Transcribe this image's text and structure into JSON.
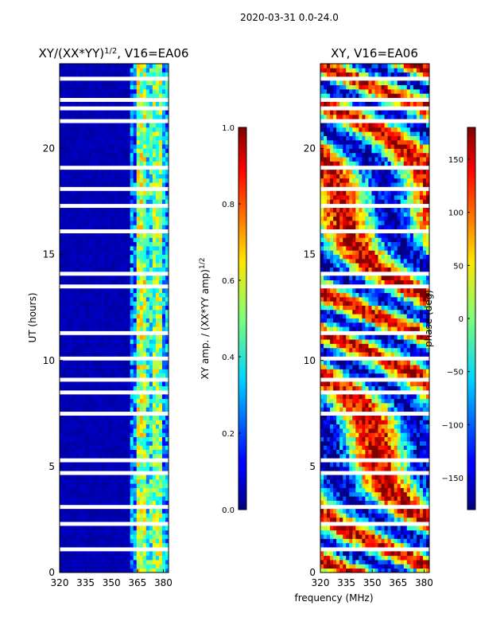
{
  "chart_data": {
    "suptitle": "2020-03-31 0.0-24.0",
    "xlabel_shared": "frequency (MHz)",
    "panels": [
      {
        "type": "heatmap",
        "title_main": "XY/(XX*YY)",
        "title_sup": "1/2",
        "title_tail": ", V16=EA06",
        "ylabel": "UT (hours)",
        "xlim": [
          320,
          383
        ],
        "ylim": [
          0,
          24
        ],
        "xticks": [
          320,
          335,
          350,
          365,
          380
        ],
        "yticks": [
          0,
          5,
          10,
          15,
          20
        ],
        "colorbar": {
          "label_main": "XY amp. / (XX*YY amp)",
          "label_sup": "1/2",
          "range": [
            0.0,
            1.0
          ],
          "ticks": [
            "0.0",
            "0.2",
            "0.4",
            "0.6",
            "0.8",
            "1.0"
          ],
          "tick_values": [
            0.0,
            0.2,
            0.4,
            0.6,
            0.8,
            1.0
          ]
        },
        "bands": [
          {
            "from_mhz": 320,
            "to_mhz": 360,
            "level": 0.03
          },
          {
            "from_mhz": 360,
            "to_mhz": 364,
            "level": 0.25
          },
          {
            "from_mhz": 364,
            "to_mhz": 370,
            "level": 0.55
          },
          {
            "from_mhz": 370,
            "to_mhz": 374,
            "level": 0.4
          },
          {
            "from_mhz": 374,
            "to_mhz": 380,
            "level": 0.5
          },
          {
            "from_mhz": 380,
            "to_mhz": 383,
            "level": 0.3
          }
        ],
        "flagged_hours": [
          1.0,
          2.3,
          3.1,
          4.6,
          5.2,
          7.5,
          8.4,
          9.1,
          10.0,
          11.3,
          13.4,
          14.1,
          16.0,
          17.2,
          18.0,
          19.2,
          21.3,
          21.9,
          22.4,
          23.2
        ]
      },
      {
        "type": "heatmap",
        "title_main": "XY, V16=EA06",
        "xlim": [
          320,
          383
        ],
        "ylim": [
          0,
          24
        ],
        "xticks": [
          320,
          335,
          350,
          365,
          380
        ],
        "yticks": [
          0,
          5,
          10,
          15,
          20
        ],
        "colorbar": {
          "label": "phase (deg)",
          "range": [
            -180,
            180
          ],
          "ticks": [
            "150",
            "100",
            "50",
            "0",
            "−50",
            "−100",
            "−150"
          ],
          "tick_values": [
            150,
            100,
            50,
            0,
            -50,
            -100,
            -150
          ]
        },
        "flagged_hours": [
          1.0,
          2.3,
          3.1,
          4.6,
          5.2,
          7.5,
          8.4,
          9.1,
          10.0,
          11.3,
          13.4,
          14.1,
          16.0,
          17.2,
          18.0,
          19.2,
          21.3,
          21.9,
          22.4,
          23.2
        ]
      }
    ]
  },
  "colors": {
    "jet_dark_blue": "#00007f",
    "flag": "#ffffff"
  }
}
